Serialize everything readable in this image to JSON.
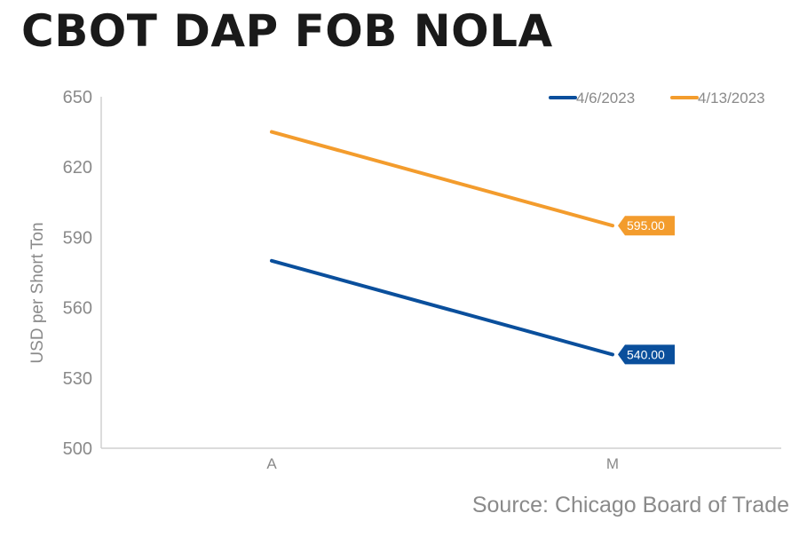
{
  "header": {
    "title": "CBOT DAP FOB NOLA"
  },
  "footer": {
    "source": "Source: Chicago Board of Trade"
  },
  "chart_data": {
    "type": "line",
    "title": "CBOT DAP FOB NOLA",
    "xlabel": "",
    "ylabel": "USD per Short Ton",
    "categories": [
      "A",
      "M"
    ],
    "ylim": [
      500,
      650
    ],
    "yticks": [
      "650",
      "620",
      "590",
      "560",
      "530",
      "500"
    ],
    "grid": false,
    "legend_position": "top-right",
    "series": [
      {
        "name": "4/6/2023",
        "values": [
          580,
          540
        ],
        "color": "#0a4f9c",
        "end_label": "540.00"
      },
      {
        "name": "4/13/2023",
        "values": [
          635,
          595
        ],
        "color": "#f39c2d",
        "end_label": "595.00"
      }
    ]
  }
}
